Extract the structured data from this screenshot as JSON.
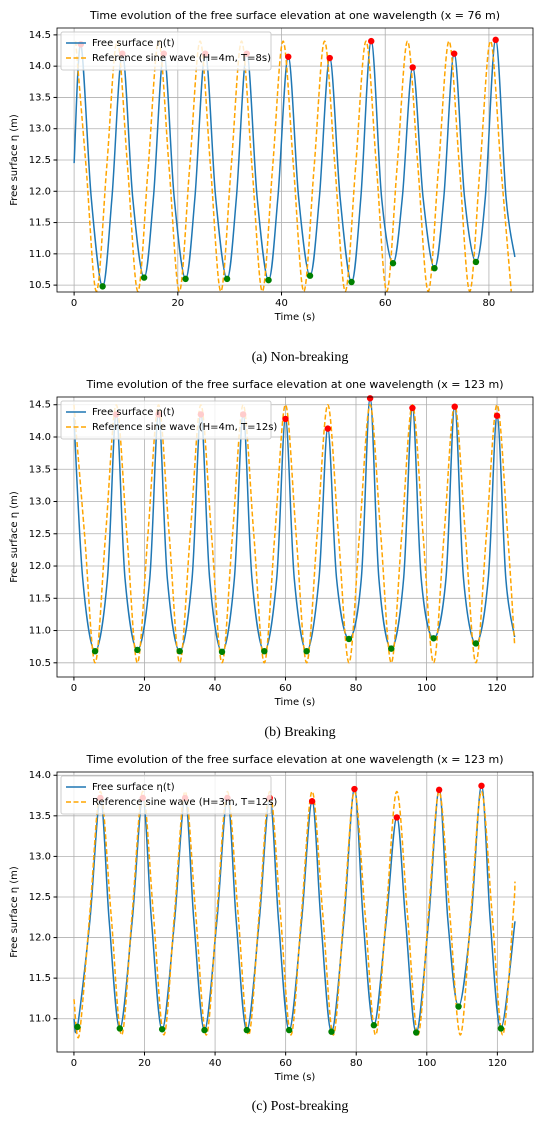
{
  "chart_data": [
    {
      "type": "line",
      "title": "Time evolution of the free surface elevation at one wavelength (x = 76 m)",
      "xlabel": "Time (s)",
      "ylabel": "Free surface η (m)",
      "caption": "(a) Non-breaking",
      "xlim": [
        -3.3,
        88.5
      ],
      "xticks": [
        0,
        20,
        40,
        60,
        80
      ],
      "ylim": [
        10.39,
        14.61
      ],
      "yticks": [
        10.5,
        {
          "value": 11,
          "label": "11.0"
        },
        11.5,
        {
          "value": 12,
          "label": "12.0"
        },
        12.5,
        {
          "value": 13,
          "label": "13.0"
        },
        13.5,
        {
          "value": 14,
          "label": "14.0"
        },
        14.5
      ],
      "grid": true,
      "legend": "upper left",
      "series": [
        {
          "name": "Free surface η(t)",
          "color": "#1f77b4",
          "x": [
            0,
            1.3,
            3.3,
            5.5,
            7.3,
            9.3,
            11.3,
            13.5,
            15.3,
            17.3,
            19.3,
            21.5,
            23.3,
            25.3,
            27.3,
            29.5,
            31.3,
            33.3,
            35.3,
            37.5,
            39.3,
            41.3,
            43.3,
            45.5,
            47.3,
            49.3,
            51.3,
            53.5,
            55.3,
            57.3,
            59.3,
            61.5,
            63.3,
            65.3,
            67.3,
            69.5,
            71.3,
            73.3,
            75.3,
            77.5,
            79.3,
            81.3,
            83.3,
            85
          ],
          "values": [
            12.45,
            14.35,
            11.9,
            10.48,
            11.9,
            14.2,
            11.9,
            10.62,
            11.9,
            14.2,
            11.9,
            10.6,
            11.9,
            14.2,
            11.9,
            10.6,
            11.9,
            14.2,
            11.9,
            10.58,
            11.9,
            14.15,
            11.9,
            10.65,
            11.9,
            14.13,
            11.9,
            10.55,
            11.9,
            14.4,
            11.9,
            10.85,
            11.9,
            13.98,
            11.9,
            10.77,
            11.9,
            14.2,
            11.9,
            10.87,
            11.9,
            14.42,
            11.9,
            10.95
          ]
        },
        {
          "name": "Reference sine wave (H=4m, T=8s)",
          "color": "orange",
          "dashed": true,
          "x": [
            0.3,
            2.3,
            4.3,
            6.3,
            8.3,
            10.3,
            12.3,
            14.3,
            16.3,
            18.3,
            20.3,
            22.3,
            24.3,
            26.3,
            28.3,
            30.3,
            32.3,
            34.3,
            36.3,
            38.3,
            40.3,
            42.3,
            44.3,
            46.3,
            48.3,
            50.3,
            52.3,
            54.3,
            56.3,
            58.3,
            60.3,
            62.3,
            64.3,
            66.3,
            68.3,
            70.3,
            72.3,
            74.3,
            76.3,
            78.3,
            80.3,
            82.3,
            84.3
          ],
          "values": [
            14.4,
            12.4,
            10.4,
            12.4,
            14.4,
            12.4,
            10.4,
            12.4,
            14.4,
            12.4,
            10.4,
            12.4,
            14.4,
            12.4,
            10.4,
            12.4,
            14.4,
            12.4,
            10.4,
            12.4,
            14.4,
            12.4,
            10.4,
            12.4,
            14.4,
            12.4,
            10.4,
            12.4,
            14.4,
            12.4,
            10.4,
            12.4,
            14.4,
            12.4,
            10.4,
            12.4,
            14.4,
            12.4,
            10.4,
            12.4,
            14.4,
            12.4,
            10.4
          ]
        }
      ],
      "markers": [
        {
          "color": "red",
          "x": [
            1.3,
            9.3,
            17.3,
            25.3,
            33.3,
            41.3,
            49.3,
            57.3,
            65.3,
            73.3,
            81.3
          ],
          "values": [
            14.35,
            14.2,
            14.2,
            14.2,
            14.2,
            14.15,
            14.13,
            14.4,
            13.98,
            14.2,
            14.42
          ]
        },
        {
          "color": "green",
          "x": [
            5.5,
            13.5,
            21.5,
            29.5,
            37.5,
            45.5,
            53.5,
            61.5,
            69.5,
            77.5
          ],
          "values": [
            10.48,
            10.62,
            10.6,
            10.6,
            10.58,
            10.65,
            10.55,
            10.85,
            10.77,
            10.87
          ]
        }
      ]
    },
    {
      "type": "line",
      "title": "Time evolution of the free surface elevation at one wavelength (x = 123 m)",
      "xlabel": "Time (s)",
      "ylabel": "Free surface η (m)",
      "caption": "(b) Breaking",
      "xlim": [
        -4.8,
        130.2
      ],
      "xticks": [
        0,
        20,
        40,
        60,
        80,
        100,
        120
      ],
      "ylim": [
        10.28,
        14.62
      ],
      "yticks": [
        10.5,
        {
          "value": 11,
          "label": "11.0"
        },
        11.5,
        {
          "value": 12,
          "label": "12.0"
        },
        12.5,
        {
          "value": 13,
          "label": "13.0"
        },
        13.5,
        {
          "value": 14,
          "label": "14.0"
        },
        14.5
      ],
      "grid": true,
      "legend": "upper left",
      "series": [
        {
          "name": "Free surface η(t)",
          "color": "#1f77b4",
          "x": [
            0,
            2.5,
            6,
            9.5,
            12,
            14.5,
            18,
            21.5,
            24,
            26.5,
            30,
            33.5,
            36,
            38.5,
            42,
            45.5,
            48,
            50.5,
            54,
            57.5,
            60,
            62.5,
            66,
            69.5,
            72,
            74.5,
            78,
            81.5,
            84,
            86.5,
            90,
            93.5,
            96,
            98.5,
            102,
            105.5,
            108,
            110.5,
            114,
            117.5,
            120,
            122.5,
            125
          ],
          "values": [
            14.3,
            11.8,
            10.68,
            11.8,
            14.35,
            11.8,
            10.7,
            11.8,
            14.35,
            11.8,
            10.68,
            11.8,
            14.35,
            11.8,
            10.67,
            11.8,
            14.35,
            11.8,
            10.68,
            11.8,
            14.28,
            11.8,
            10.68,
            11.8,
            14.13,
            11.8,
            10.87,
            11.8,
            14.6,
            11.8,
            10.72,
            11.8,
            14.45,
            11.8,
            10.88,
            11.8,
            14.47,
            11.8,
            10.8,
            11.8,
            14.33,
            11.8,
            10.9
          ]
        },
        {
          "name": "Reference sine wave (H=4m, T=12s)",
          "color": "orange",
          "dashed": true,
          "x": [
            0,
            3,
            6,
            9,
            12,
            15,
            18,
            21,
            24,
            27,
            30,
            33,
            36,
            39,
            42,
            45,
            48,
            51,
            54,
            57,
            60,
            63,
            66,
            69,
            72,
            75,
            78,
            81,
            84,
            87,
            90,
            93,
            96,
            99,
            102,
            105,
            108,
            111,
            114,
            117,
            120,
            123,
            125
          ],
          "values": [
            14.5,
            12.5,
            10.5,
            12.5,
            14.5,
            12.5,
            10.5,
            12.5,
            14.5,
            12.5,
            10.5,
            12.5,
            14.5,
            12.5,
            10.5,
            12.5,
            14.5,
            12.5,
            10.5,
            12.5,
            14.5,
            12.5,
            10.5,
            12.5,
            14.5,
            12.5,
            10.5,
            12.5,
            14.5,
            12.5,
            10.5,
            12.5,
            14.5,
            12.5,
            10.5,
            12.5,
            14.5,
            12.5,
            10.5,
            12.5,
            14.5,
            12.5,
            10.77
          ]
        }
      ],
      "markers": [
        {
          "color": "red",
          "x": [
            12,
            24,
            36,
            48,
            60,
            72,
            84,
            96,
            108,
            120
          ],
          "values": [
            14.35,
            14.35,
            14.35,
            14.35,
            14.28,
            14.13,
            14.6,
            14.45,
            14.47,
            14.33
          ]
        },
        {
          "color": "green",
          "x": [
            6,
            18,
            30,
            42,
            54,
            66,
            78,
            90,
            102,
            114
          ],
          "values": [
            10.68,
            10.7,
            10.68,
            10.67,
            10.68,
            10.68,
            10.87,
            10.72,
            10.88,
            10.8
          ]
        }
      ]
    },
    {
      "type": "line",
      "title": "Time evolution of the free surface elevation at one wavelength (x = 123 m)",
      "xlabel": "Time (s)",
      "ylabel": "Free surface η (m)",
      "caption": "(c) Post-breaking",
      "xlim": [
        -4.8,
        130.1
      ],
      "xticks": [
        0,
        20,
        40,
        60,
        80,
        100,
        120
      ],
      "ylim": [
        10.59,
        14.04
      ],
      "yticks": [
        {
          "value": 11,
          "label": "11.0"
        },
        11.5,
        {
          "value": 12,
          "label": "12.0"
        },
        12.5,
        {
          "value": 13,
          "label": "13.0"
        },
        13.5,
        {
          "value": 14,
          "label": "14.0"
        }
      ],
      "grid": true,
      "legend": "upper left",
      "series": [
        {
          "name": "Free surface η(t)",
          "color": "#1f77b4",
          "x": [
            0,
            1,
            4.5,
            7.5,
            10,
            13,
            16.5,
            19.5,
            22,
            25,
            28.5,
            31.5,
            34,
            37,
            40.5,
            43.5,
            46,
            49,
            52.5,
            55.5,
            58,
            61,
            64.5,
            67.5,
            70,
            73,
            76.5,
            79.5,
            82,
            85,
            88.5,
            91.5,
            94,
            97,
            100.5,
            103.5,
            106,
            109,
            112.5,
            115.5,
            118,
            121,
            125
          ],
          "values": [
            11.0,
            10.9,
            12.2,
            13.72,
            12.2,
            10.88,
            12.2,
            13.72,
            12.2,
            10.87,
            12.2,
            13.72,
            12.2,
            10.86,
            12.2,
            13.72,
            12.2,
            10.86,
            12.2,
            13.72,
            12.2,
            10.86,
            12.2,
            13.68,
            12.2,
            10.84,
            12.2,
            13.83,
            12.2,
            10.92,
            12.2,
            13.48,
            12.2,
            10.83,
            12.2,
            13.82,
            12.2,
            11.15,
            12.2,
            13.87,
            12.2,
            10.88,
            12.2
          ]
        },
        {
          "name": "Reference sine wave (H=3m, T=12s)",
          "color": "orange",
          "dashed": true,
          "x": [
            0,
            1.5,
            4.5,
            7.5,
            10.5,
            13.5,
            16.5,
            19.5,
            22.5,
            25.5,
            28.5,
            31.5,
            34.5,
            37.5,
            40.5,
            43.5,
            46.5,
            49.5,
            52.5,
            55.5,
            58.5,
            61.5,
            64.5,
            67.5,
            70.5,
            73.5,
            76.5,
            79.5,
            82.5,
            85.5,
            88.5,
            91.5,
            94.5,
            97.5,
            100.5,
            103.5,
            106.5,
            109.5,
            112.5,
            115.5,
            118.5,
            121.5,
            124.5,
            125
          ],
          "values": [
            11.24,
            10.8,
            12.3,
            13.8,
            12.3,
            10.8,
            12.3,
            13.8,
            12.3,
            10.8,
            12.3,
            13.8,
            12.3,
            10.8,
            12.3,
            13.8,
            12.3,
            10.8,
            12.3,
            13.8,
            12.3,
            10.8,
            12.3,
            13.8,
            12.3,
            10.8,
            12.3,
            13.8,
            12.3,
            10.8,
            12.3,
            13.8,
            12.3,
            10.8,
            12.3,
            13.8,
            12.3,
            10.8,
            12.3,
            13.8,
            12.3,
            10.8,
            12.3,
            12.69
          ]
        }
      ],
      "markers": [
        {
          "color": "red",
          "x": [
            7.5,
            19.5,
            31.5,
            43.5,
            55.5,
            67.5,
            79.5,
            91.5,
            103.5,
            115.5
          ],
          "values": [
            13.72,
            13.72,
            13.72,
            13.72,
            13.72,
            13.68,
            13.83,
            13.48,
            13.82,
            13.87
          ]
        },
        {
          "color": "green",
          "x": [
            1,
            13,
            25,
            37,
            49,
            61,
            73,
            85,
            97,
            109,
            121
          ],
          "values": [
            10.9,
            10.88,
            10.87,
            10.86,
            10.86,
            10.86,
            10.84,
            10.92,
            10.83,
            11.15,
            10.88
          ]
        }
      ]
    }
  ]
}
